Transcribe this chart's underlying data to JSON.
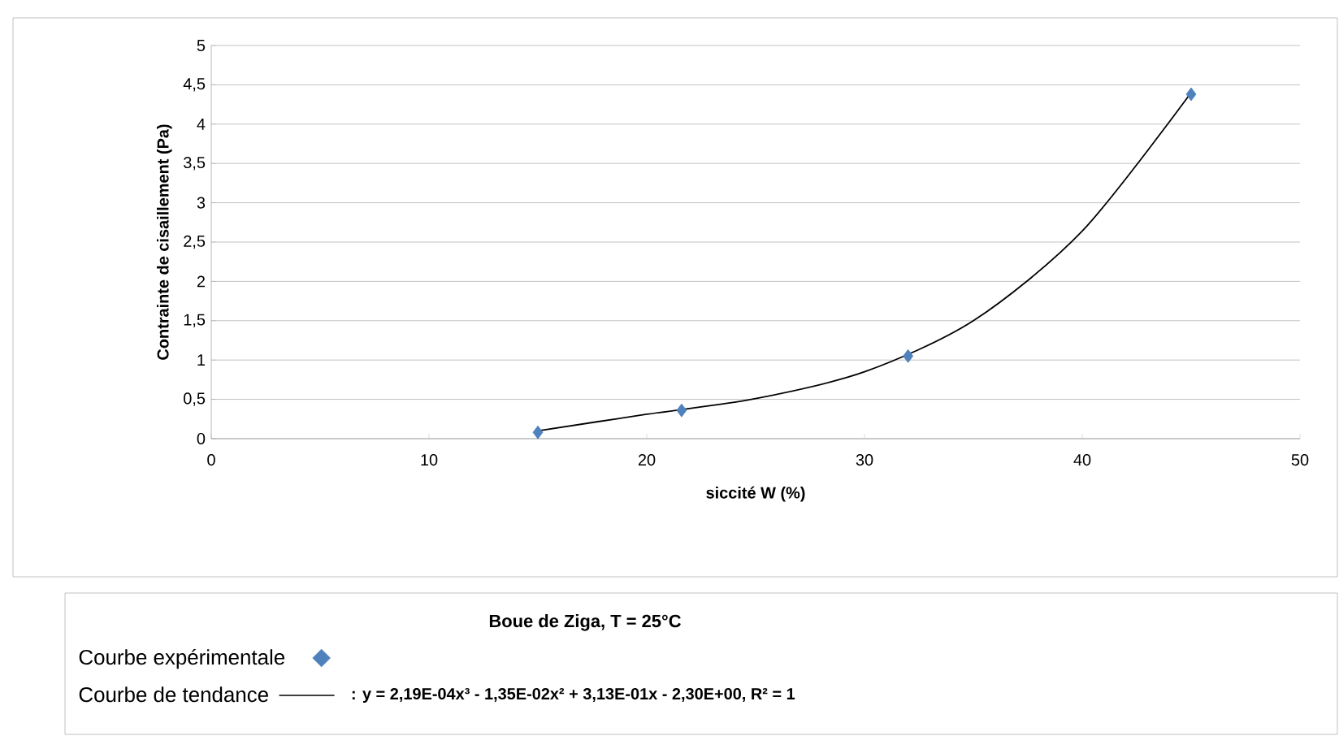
{
  "chart_data": {
    "type": "scatter",
    "xlabel": "siccité W (%)",
    "ylabel": "Contrainte de cisaillement (Pa)",
    "legend_title": "Boue de Ziga, T = 25°C",
    "annotations": [
      ": y = 2,19E-04x³ - 1,35E-02x² + 3,13E-01x - 2,30E+00, R² = 1"
    ],
    "series": [
      {
        "name": "Courbe expérimentale",
        "color": "#4f81bd",
        "marker": "diamond",
        "x": [
          15,
          21.6,
          32,
          45
        ],
        "values": [
          0.08,
          0.36,
          1.05,
          4.38
        ]
      },
      {
        "name": "Courbe de tendance",
        "type": "line",
        "color": "#000000",
        "marker": "none",
        "line_style": "solid",
        "x": [
          15,
          20,
          25,
          30,
          35,
          40,
          45
        ],
        "values": [
          0.1,
          0.31,
          0.51,
          0.85,
          1.5,
          2.64,
          4.4
        ]
      }
    ],
    "xlim": [
      0,
      50
    ],
    "ylim": [
      0,
      5
    ],
    "xticks": [
      0,
      10,
      20,
      30,
      40,
      50
    ],
    "yticks": [
      0,
      {
        "value": 0.5,
        "label": "0,5"
      },
      1,
      {
        "value": 1.5,
        "label": "1,5"
      },
      2,
      {
        "value": 2.5,
        "label": "2,5"
      },
      3,
      {
        "value": 3.5,
        "label": "3,5"
      },
      4,
      {
        "value": 4.5,
        "label": "4,5"
      },
      5
    ],
    "grid": "y",
    "legend": "bottom"
  }
}
